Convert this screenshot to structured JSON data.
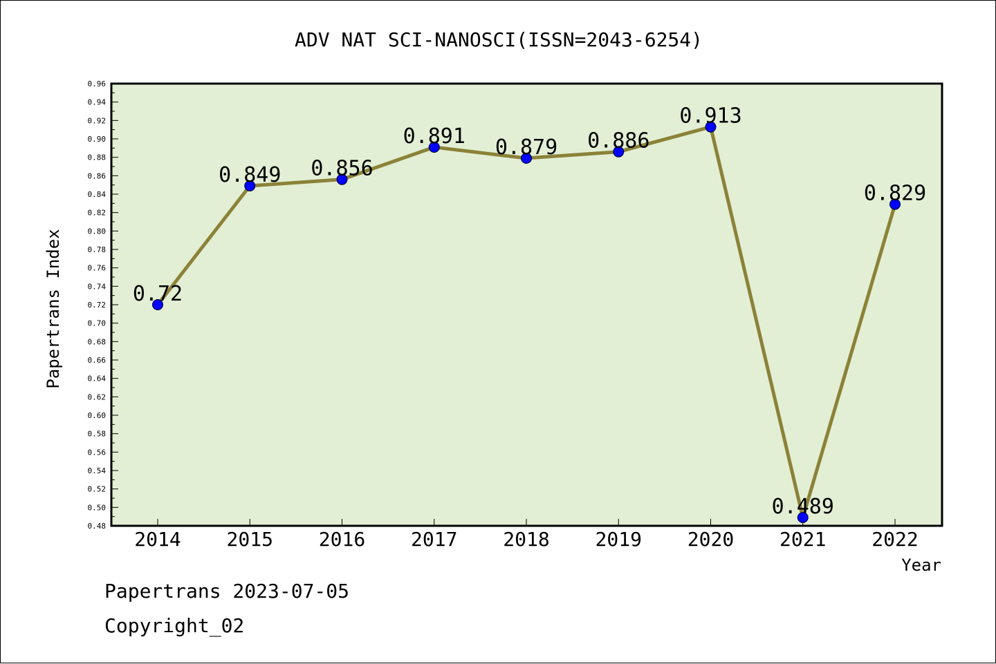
{
  "chart_data": {
    "type": "line",
    "title": "ADV NAT SCI-NANOSCI(ISSN=2043-6254)",
    "xlabel": "Year",
    "ylabel": "Papertrans Index",
    "categories": [
      "2014",
      "2015",
      "2016",
      "2017",
      "2018",
      "2019",
      "2020",
      "2021",
      "2022"
    ],
    "series": [
      {
        "values": [
          0.72,
          0.849,
          0.856,
          0.891,
          0.879,
          0.886,
          0.913,
          0.489,
          0.829
        ],
        "data_labels": [
          "0.72",
          "0.849",
          "0.856",
          "0.891",
          "0.879",
          "0.886",
          "0.913",
          "0.489",
          "0.829"
        ]
      }
    ],
    "ylim": [
      0.48,
      0.96
    ],
    "ytick_step": 0.02,
    "ytick_labels": [
      "0.48",
      "0.50",
      "0.52",
      "0.54",
      "0.56",
      "0.58",
      "0.60",
      "0.62",
      "0.64",
      "0.66",
      "0.68",
      "0.70",
      "0.72",
      "0.74",
      "0.76",
      "0.78",
      "0.80",
      "0.82",
      "0.84",
      "0.86",
      "0.88",
      "0.90",
      "0.92",
      "0.94",
      "0.96"
    ],
    "grid": false,
    "colors": {
      "plot_background": "#e2efd4",
      "line": "#8b8238",
      "marker": "#0000ff"
    }
  },
  "footer": {
    "date_line": "Papertrans 2023-07-05",
    "copyright_line": "Copyright_02"
  }
}
